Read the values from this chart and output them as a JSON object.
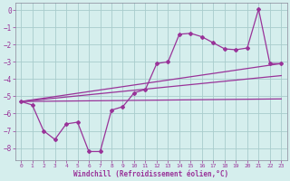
{
  "xlabel": "Windchill (Refroidissement éolien,°C)",
  "background_color": "#d5eeed",
  "plot_bg_color": "#d5eeed",
  "grid_color": "#a8cccc",
  "line_color": "#993399",
  "tick_color": "#993399",
  "label_color": "#993399",
  "xlim": [
    -0.5,
    23.5
  ],
  "ylim": [
    -8.7,
    0.4
  ],
  "xticks": [
    0,
    1,
    2,
    3,
    4,
    5,
    6,
    7,
    8,
    9,
    10,
    11,
    12,
    13,
    14,
    15,
    16,
    17,
    18,
    19,
    20,
    21,
    22,
    23
  ],
  "yticks": [
    0,
    -1,
    -2,
    -3,
    -4,
    -5,
    -6,
    -7,
    -8
  ],
  "series1_x": [
    0,
    1,
    2,
    3,
    4,
    5,
    6,
    7,
    8,
    9,
    10,
    11,
    12,
    13,
    14,
    15,
    16,
    17,
    18,
    19,
    20,
    21,
    22,
    23
  ],
  "series1_y": [
    -5.3,
    -5.5,
    -7.0,
    -7.5,
    -6.6,
    -6.5,
    -8.2,
    -8.2,
    -5.8,
    -5.6,
    -4.8,
    -4.6,
    -3.1,
    -3.0,
    -1.4,
    -1.35,
    -1.55,
    -1.9,
    -2.25,
    -2.3,
    -2.2,
    0.05,
    -3.1,
    -3.1
  ],
  "series2_x": [
    0,
    23
  ],
  "series2_y": [
    -5.3,
    -3.1
  ],
  "series3_x": [
    0,
    23
  ],
  "series3_y": [
    -5.3,
    -3.8
  ],
  "series4_x": [
    0,
    23
  ],
  "series4_y": [
    -5.3,
    -5.15
  ]
}
